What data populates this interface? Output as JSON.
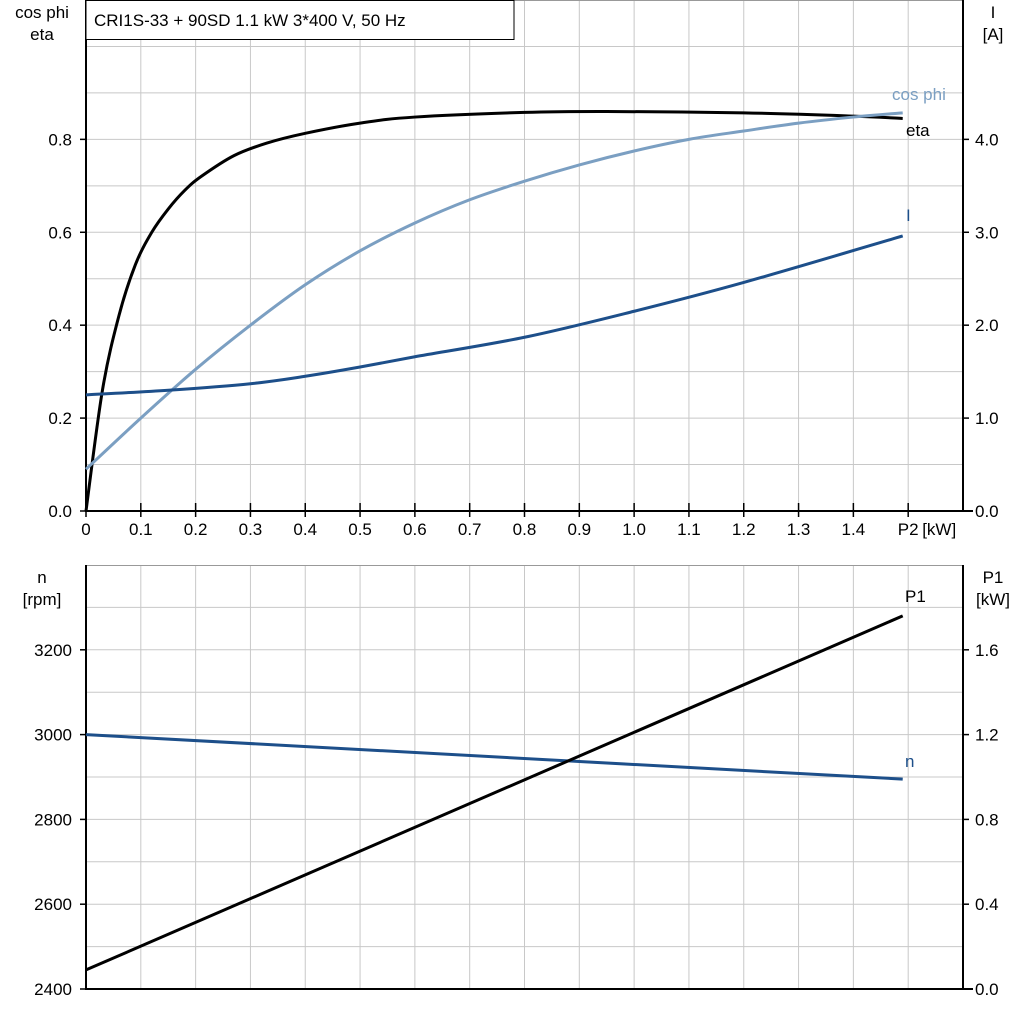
{
  "chart_data": [
    {
      "type": "line",
      "title": "CRI1S-33 + 90SD   1.1 kW   3*400 V, 50 Hz",
      "xlabel": "P2 [kW]",
      "ylabel_left": [
        "cos phi",
        "eta"
      ],
      "ylabel_right": [
        "I",
        "[A]"
      ],
      "xlim": [
        0,
        1.6
      ],
      "ylim_left": [
        0,
        1.1
      ],
      "ylim_right": [
        0,
        5.5
      ],
      "x_ticks": [
        "0",
        "0.1",
        "0.2",
        "0.3",
        "0.4",
        "0.5",
        "0.6",
        "0.7",
        "0.8",
        "0.9",
        "1.0",
        "1.1",
        "1.2",
        "1.3",
        "1.4",
        "P2"
      ],
      "x_unit": "[kW]",
      "y_ticks_left": [
        "0.0",
        "0.2",
        "0.4",
        "0.6",
        "0.8"
      ],
      "y_ticks_right": [
        "0.0",
        "1.0",
        "2.0",
        "3.0",
        "4.0"
      ],
      "grid": true,
      "series": [
        {
          "name": "eta",
          "axis": "left",
          "color": "#000000",
          "x": [
            0,
            0.03,
            0.06,
            0.09,
            0.12,
            0.15,
            0.18,
            0.21,
            0.27,
            0.33,
            0.4,
            0.5,
            0.6,
            0.8,
            0.95,
            1.2,
            1.4,
            1.49
          ],
          "y": [
            0,
            0.26,
            0.42,
            0.53,
            0.6,
            0.65,
            0.69,
            0.72,
            0.765,
            0.792,
            0.813,
            0.835,
            0.848,
            0.858,
            0.86,
            0.857,
            0.85,
            0.845
          ]
        },
        {
          "name": "cos phi",
          "axis": "left",
          "color": "#7b9fc2",
          "x": [
            0,
            0.1,
            0.2,
            0.3,
            0.4,
            0.5,
            0.6,
            0.7,
            0.8,
            0.9,
            1.0,
            1.1,
            1.2,
            1.3,
            1.4,
            1.49
          ],
          "y": [
            0.09,
            0.2,
            0.305,
            0.4,
            0.487,
            0.56,
            0.62,
            0.67,
            0.71,
            0.745,
            0.775,
            0.8,
            0.818,
            0.835,
            0.848,
            0.857
          ]
        },
        {
          "name": "I",
          "axis": "right",
          "color": "#1d4f8a",
          "x": [
            0,
            0.15,
            0.3,
            0.4,
            0.5,
            0.6,
            0.8,
            1.0,
            1.2,
            1.49
          ],
          "y": [
            1.25,
            1.3,
            1.37,
            1.45,
            1.55,
            1.66,
            1.87,
            2.15,
            2.46,
            2.96
          ]
        }
      ]
    },
    {
      "type": "line",
      "xlim": [
        0,
        1.6
      ],
      "ylabel_left": [
        "n",
        "[rpm]"
      ],
      "ylabel_right": [
        "P1",
        "[kW]"
      ],
      "ylim_left": [
        2400,
        3400
      ],
      "ylim_right": [
        0,
        2.0
      ],
      "y_ticks_left": [
        "2400",
        "2600",
        "2800",
        "3000",
        "3200"
      ],
      "y_ticks_right": [
        "0.0",
        "0.4",
        "0.8",
        "1.2",
        "1.6"
      ],
      "grid": true,
      "series": [
        {
          "name": "n",
          "axis": "left",
          "color": "#1d4f8a",
          "x": [
            0,
            1.49
          ],
          "y": [
            3000,
            2895
          ]
        },
        {
          "name": "P1",
          "axis": "right",
          "color": "#000000",
          "x": [
            0,
            1.49
          ],
          "y": [
            0.09,
            1.76
          ]
        }
      ]
    }
  ]
}
